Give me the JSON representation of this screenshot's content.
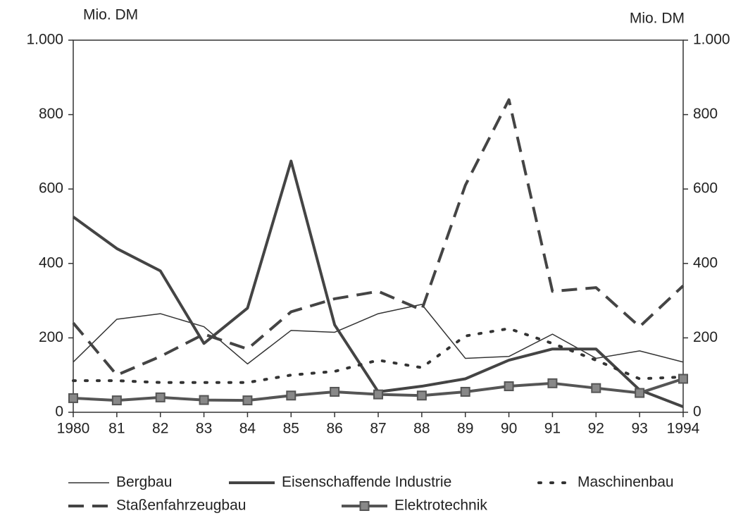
{
  "chart_data": {
    "type": "line",
    "y_label": "Mio. DM",
    "y2_label": "Mio. DM",
    "categories": [
      "1980",
      "81",
      "82",
      "83",
      "84",
      "85",
      "86",
      "87",
      "88",
      "89",
      "90",
      "91",
      "92",
      "93",
      "1994"
    ],
    "ylim": [
      0,
      1000
    ],
    "yticks": [
      0,
      200,
      400,
      600,
      800,
      {
        "value": 1000,
        "label": "1.000"
      }
    ],
    "y2lim": [
      0,
      1000
    ],
    "y2ticks": [
      0,
      200,
      400,
      600,
      800,
      {
        "value": 1000,
        "label": "1.000"
      }
    ],
    "series": [
      {
        "name": "Bergbau",
        "color": "#333333",
        "style": "solid",
        "width": 1.5,
        "values": [
          135,
          250,
          265,
          230,
          130,
          220,
          215,
          265,
          290,
          145,
          150,
          210,
          145,
          165,
          135
        ]
      },
      {
        "name": "Eisenschaffende Industrie",
        "color": "#444444",
        "style": "solid",
        "width": 4,
        "values": [
          525,
          440,
          380,
          185,
          280,
          675,
          235,
          55,
          70,
          90,
          140,
          170,
          170,
          60,
          15
        ]
      },
      {
        "name": "Maschinenbau",
        "color": "#333333",
        "style": "dotted",
        "width": 4,
        "values": [
          85,
          85,
          80,
          80,
          80,
          100,
          110,
          140,
          120,
          205,
          225,
          185,
          140,
          90,
          95
        ]
      },
      {
        "name": "Staßenfahrzeugbau",
        "color": "#444444",
        "style": "dashed",
        "width": 4,
        "values": [
          240,
          100,
          150,
          210,
          170,
          270,
          305,
          325,
          275,
          610,
          840,
          325,
          335,
          230,
          340
        ]
      },
      {
        "name": "Elektrotechnik",
        "color": "#555555",
        "style": "solid",
        "width": 4,
        "marker": "square",
        "values": [
          38,
          32,
          40,
          33,
          32,
          45,
          55,
          48,
          45,
          55,
          70,
          78,
          65,
          52,
          90
        ]
      }
    ]
  }
}
